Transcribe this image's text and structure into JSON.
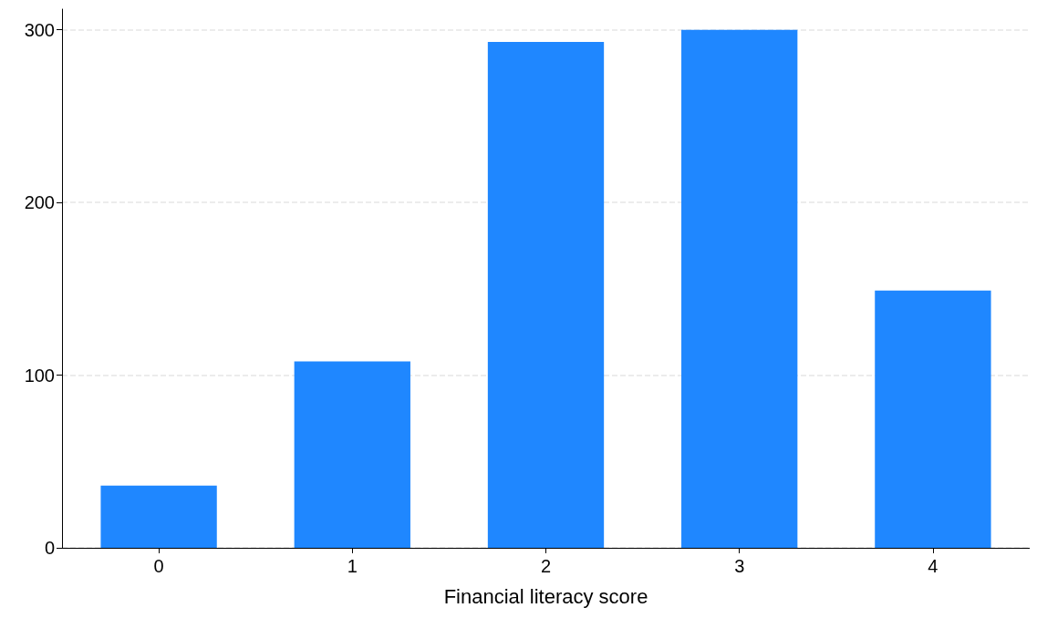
{
  "chart_data": {
    "type": "bar",
    "xlabel": "Financial literacy score",
    "categories": [
      "0",
      "1",
      "2",
      "3",
      "4"
    ],
    "values": [
      36,
      108,
      293,
      300,
      149
    ],
    "color": "#1f87ff",
    "ylim": [
      0,
      312
    ],
    "yticks": [
      0,
      100,
      200,
      300
    ],
    "grid": "y"
  }
}
